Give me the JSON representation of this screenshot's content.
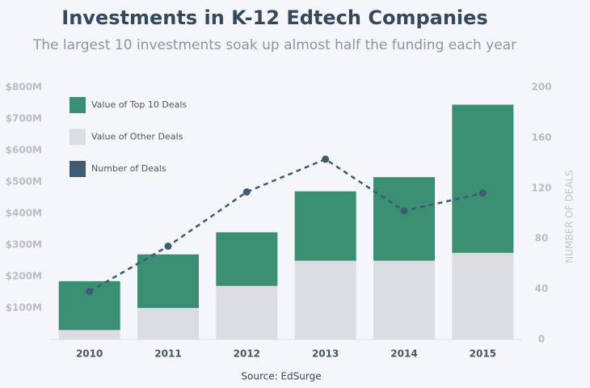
{
  "chart_data": {
    "type": "bar",
    "title": "Investments in K-12 Edtech Companies",
    "subtitle": "The largest 10 investments soak up almost half the funding each year",
    "source": "Source: EdSurge",
    "y2label": "NUMBER OF DEALS",
    "categories": [
      "2010",
      "2011",
      "2012",
      "2013",
      "2014",
      "2015"
    ],
    "series": [
      {
        "name": "Value of Top 10 Deals",
        "color": "#3a8f72",
        "type": "bar",
        "values": [
          155,
          170,
          170,
          220,
          265,
          470
        ]
      },
      {
        "name": "Value of Other Deals",
        "color": "#dcdde2",
        "type": "bar",
        "values": [
          30,
          100,
          170,
          250,
          250,
          275
        ]
      },
      {
        "name": "Number of Deals",
        "color": "#3f5a73",
        "type": "line",
        "axis": "y2",
        "values": [
          38,
          74,
          117,
          143,
          102,
          116
        ]
      }
    ],
    "ylim": [
      0,
      800
    ],
    "yticks": [
      {
        "value": 100,
        "label": "$100M"
      },
      {
        "value": 200,
        "label": "$200M"
      },
      {
        "value": 300,
        "label": "$300M"
      },
      {
        "value": 400,
        "label": "$400M"
      },
      {
        "value": 500,
        "label": "$500M"
      },
      {
        "value": 600,
        "label": "$600M"
      },
      {
        "value": 700,
        "label": "$700M"
      },
      {
        "value": 800,
        "label": "$800M"
      }
    ],
    "y2lim": [
      0,
      200
    ],
    "y2ticks": [
      0,
      40,
      80,
      120,
      160,
      200
    ]
  }
}
